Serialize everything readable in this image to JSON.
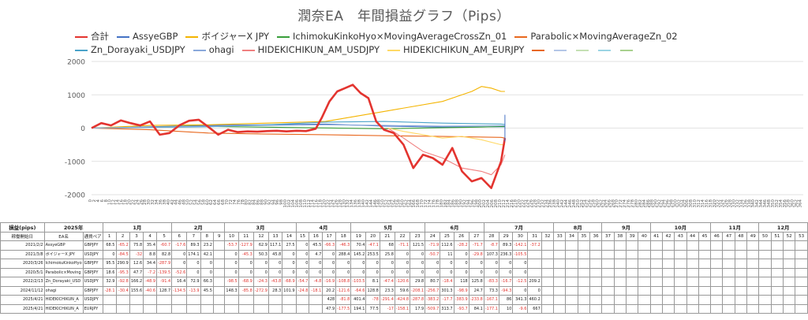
{
  "chart_data": {
    "type": "line",
    "title": "潤奈EA　年間損益グラフ（Pips）",
    "ylim": [
      -2000,
      2000
    ],
    "yticks": [
      2000,
      1000,
      0,
      -1000,
      -2000
    ],
    "xlim": [
      0,
      365
    ],
    "xtick_step": 2,
    "series": [
      {
        "name": "合計",
        "color": "#e3342f",
        "x": [
          0,
          5,
          10,
          15,
          20,
          25,
          30,
          35,
          40,
          45,
          50,
          55,
          60,
          65,
          70,
          75,
          80,
          85,
          90,
          95,
          100,
          105,
          110,
          115,
          118,
          122,
          126,
          130,
          134,
          138,
          142,
          146,
          150,
          155,
          160,
          165,
          170,
          175,
          180,
          185,
          190,
          195,
          200,
          205,
          210,
          212
        ],
        "y": [
          0,
          150,
          80,
          230,
          150,
          80,
          200,
          -200,
          -150,
          80,
          220,
          250,
          30,
          -200,
          -50,
          -120,
          -100,
          -110,
          -90,
          -80,
          -100,
          -80,
          -90,
          -20,
          300,
          800,
          1100,
          1200,
          1300,
          1050,
          900,
          200,
          -50,
          -150,
          -500,
          -1200,
          -800,
          -900,
          -1100,
          -600,
          -1300,
          -1600,
          -1500,
          -1800,
          -1000,
          -300
        ]
      },
      {
        "name": "AssyeGBP",
        "color": "#4472c4",
        "x": [
          0,
          30,
          60,
          90,
          120,
          150,
          180,
          210,
          212
        ],
        "y": [
          0,
          40,
          80,
          100,
          120,
          60,
          30,
          40,
          40
        ]
      },
      {
        "name": "ボイジャーX JPY",
        "color": "#f4b400",
        "x": [
          0,
          30,
          60,
          90,
          120,
          150,
          180,
          195,
          200,
          205,
          210,
          212
        ],
        "y": [
          0,
          80,
          100,
          150,
          200,
          500,
          800,
          1100,
          1250,
          1200,
          1100,
          1100
        ]
      },
      {
        "name": "IchimokuKinkoHyo×MovingAverageCrossZn_01",
        "color": "#389e3a",
        "x": [
          0,
          50,
          100,
          150,
          200,
          212
        ],
        "y": [
          0,
          60,
          20,
          -20,
          30,
          50
        ]
      },
      {
        "name": "Parabolic×MovingAverageZn_02",
        "color": "#e8681e",
        "x": [
          0,
          30,
          60,
          90,
          120,
          150,
          180,
          210,
          212
        ],
        "y": [
          0,
          -50,
          -150,
          -180,
          -200,
          -230,
          -250,
          -280,
          -300
        ]
      },
      {
        "name": "Zn_Dorayaki_USDJPY",
        "color": "#4aa3c9",
        "x": [
          0,
          30,
          60,
          90,
          120,
          150,
          180,
          210,
          212
        ],
        "y": [
          0,
          20,
          40,
          100,
          180,
          200,
          150,
          120,
          110
        ]
      },
      {
        "name": "ohagi",
        "color": "#8aa9db",
        "x": [
          0,
          30,
          60,
          90,
          120,
          150,
          180,
          210,
          212
        ],
        "y": [
          0,
          30,
          60,
          80,
          100,
          80,
          60,
          70,
          70
        ]
      },
      {
        "name": "HIDEKICHIKUN_AM_USDJPY",
        "color": "#f08080",
        "x": [
          152,
          160,
          170,
          180,
          190,
          200,
          205,
          210,
          212
        ],
        "y": [
          0,
          -300,
          -700,
          -900,
          -1200,
          -1300,
          -1400,
          -1100,
          -800
        ]
      },
      {
        "name": "HIDEKICHIKUN_AM_EURJPY",
        "color": "#ffd966",
        "x": [
          152,
          160,
          170,
          180,
          190,
          200,
          210,
          212
        ],
        "y": [
          0,
          -100,
          -200,
          -300,
          -250,
          -350,
          -500,
          -500
        ]
      }
    ],
    "legend_extra_colors": [
      "#e8681e",
      "#b4c7e7",
      "#c5e0b4",
      "#9bd4e4",
      "#a9d18e"
    ]
  },
  "table": {
    "corner_label": "損益(pips)",
    "year_label": "2025年",
    "col_start": "稼働開始日",
    "col_ea": "EA名",
    "col_pair": "通貨ペア",
    "months": [
      "1月",
      "2月",
      "3月",
      "4月",
      "5月",
      "6月",
      "7月",
      "8月",
      "9月",
      "10月",
      "11月",
      "12月"
    ],
    "month_span": [
      5,
      4,
      5,
      4,
      5,
      4,
      5,
      4,
      4,
      5,
      4,
      4
    ],
    "weeks": [
      "1",
      "2",
      "3",
      "4",
      "5",
      "6",
      "7",
      "8",
      "9",
      "10",
      "11",
      "12",
      "13",
      "14",
      "15",
      "16",
      "17",
      "18",
      "19",
      "20",
      "21",
      "22",
      "23",
      "24",
      "25",
      "26",
      "27",
      "28",
      "29",
      "30",
      "31",
      "32",
      "33",
      "34",
      "35",
      "36",
      "37",
      "38",
      "39",
      "40",
      "41",
      "42",
      "43",
      "44",
      "45",
      "46",
      "47",
      "48",
      "49",
      "50",
      "51",
      "52",
      "53"
    ],
    "rows": [
      {
        "start": "2021/2/2",
        "ea": "AssyeGBP",
        "pair": "GBPJPY",
        "vals": [
          "68.5",
          "-65.2",
          "75.8",
          "35.4",
          "-60.7",
          "-17.6",
          "89.3",
          "23.2",
          "",
          "-53.7",
          "-127.9",
          "62.9",
          "117.1",
          "27.5",
          "0",
          "45.5",
          "-66.3",
          "-46.3",
          "70.4",
          "-47.1",
          "68",
          "-71.1",
          "121.5",
          "-71.9",
          "112.6",
          "-28.2",
          "-71.7",
          "-8.7",
          "89.3",
          "-142.1",
          "-37.2"
        ]
      },
      {
        "start": "2021/3/8",
        "ea": "ボイジャーX JPY",
        "pair": "USDJPY",
        "vals": [
          "0",
          "-84.5",
          "-32",
          "8.8",
          "82.8",
          "0",
          "174.1",
          "42.1",
          "",
          "0",
          "-45.3",
          "50.3",
          "45.8",
          "0",
          "0",
          "4.7",
          "0",
          "288.4",
          "145.2",
          "253.5",
          "25.8",
          "0",
          "0",
          "-50.7",
          "11",
          "0",
          "-29.8",
          "107.3",
          "236.3",
          "-105.5",
          ""
        ]
      },
      {
        "start": "2020/3/26",
        "ea": "IchimokuKinkoHyo",
        "pair": "GBPJPY",
        "vals": [
          "95.5",
          "290.9",
          "12.6",
          "34.4",
          "-287.9",
          "0",
          "0",
          "0",
          "",
          "0",
          "0",
          "0",
          "0",
          "0",
          "0",
          "0",
          "0",
          "0",
          "0",
          "0",
          "0",
          "0",
          "0",
          "0",
          "0",
          "0",
          "0",
          "0",
          "0",
          "0",
          ""
        ]
      },
      {
        "start": "2020/5/1",
        "ea": "Parabolic×Moving",
        "pair": "GBPJPY",
        "vals": [
          "18.6",
          "-95.3",
          "47.7",
          "-7.2",
          "-139.5",
          "-52.6",
          "0",
          "0",
          "",
          "0",
          "0",
          "0",
          "0",
          "0",
          "0",
          "0",
          "0",
          "0",
          "0",
          "0",
          "0",
          "0",
          "0",
          "0",
          "0",
          "0",
          "0",
          "0",
          "0",
          "0",
          ""
        ]
      },
      {
        "start": "2022/2/13",
        "ea": "Zn_Dorayaki_USD",
        "pair": "USDJPY",
        "vals": [
          "32.9",
          "-92.8",
          "166.2",
          "-48.9",
          "-91.4",
          "16.4",
          "72.9",
          "66.3",
          "",
          "-98.5",
          "-68.9",
          "-24.3",
          "-43.8",
          "-68.9",
          "-54.7",
          "-4.8",
          "-16.9",
          "-108.8",
          "-103.5",
          "8.1",
          "-47.4",
          "-120.6",
          "29.8",
          "80.7",
          "-18.4",
          "118",
          "125.8",
          "-83.3",
          "-16.7",
          "-12.5",
          "209.2"
        ]
      },
      {
        "start": "2024/11/12",
        "ea": "ohagi",
        "pair": "GBPJPY",
        "vals": [
          "-28.1",
          "-30.4",
          "155.6",
          "-40.6",
          "128.7",
          "-134.5",
          "-13.9",
          "45.5",
          "",
          "148.3",
          "-85.8",
          "-272.9",
          "28.3",
          "101.9",
          "-24.8",
          "-18.1",
          "20.2",
          "-121.6",
          "-64.6",
          "128.8",
          "23.3",
          "59.6",
          "-208.1",
          "-256.7",
          "301.3",
          "-98.9",
          "24.7",
          "73.3",
          "-94.3",
          "0",
          "0"
        ]
      },
      {
        "start": "2025/4/21",
        "ea": "HIDEKICHIKUN_A",
        "pair": "USDJPY",
        "vals": [
          "",
          "",
          "",
          "",
          "",
          "",
          "",
          "",
          "",
          "",
          "",
          "",
          "",
          "",
          "",
          "",
          "428",
          "-81.8",
          "401.4",
          "-78",
          "-291.4",
          "-424.8",
          "-287.8",
          "-383.2",
          "-17.7",
          "-383.9",
          "-233.8",
          "-167.1",
          "86",
          "341.3",
          "460.2"
        ]
      },
      {
        "start": "2025/4/21",
        "ea": "HIDEKICHIKUN_A",
        "pair": "EURJPY",
        "vals": [
          "",
          "",
          "",
          "",
          "",
          "",
          "",
          "",
          "",
          "",
          "",
          "",
          "",
          "",
          "",
          "",
          "47.9",
          "-177.5",
          "194.1",
          "77.5",
          "-17",
          "-158.1",
          "17.9",
          "-509.7",
          "313.7",
          "-93.7",
          "84.1",
          "-177.1",
          "10",
          "-9.6",
          "667"
        ]
      }
    ]
  }
}
